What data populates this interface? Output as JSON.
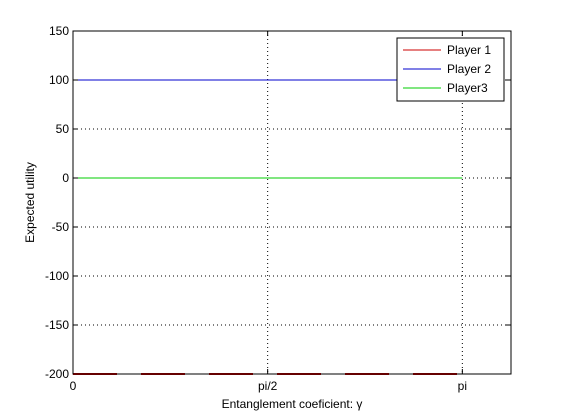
{
  "chart_data": {
    "type": "line",
    "xlabel": "Entanglement coeficient: γ",
    "ylabel": "Expected utility",
    "xlim": [
      0,
      3.5343
    ],
    "ylim": [
      -200,
      150
    ],
    "xticks": [
      {
        "value": 0,
        "label": "0"
      },
      {
        "value": 1.5708,
        "label": "pi/2"
      },
      {
        "value": 3.1416,
        "label": "pi"
      }
    ],
    "yticks": [
      -200,
      -150,
      -100,
      -50,
      0,
      50,
      100,
      150
    ],
    "grid": true,
    "legend_position": "top-right",
    "series": [
      {
        "name": "Player 1",
        "color": "#cc0000",
        "style": "dashed",
        "x": [
          0,
          3.1416
        ],
        "y": [
          -200,
          -200
        ]
      },
      {
        "name": "Player 2",
        "color": "#0000cc",
        "style": "solid",
        "x": [
          0,
          3.1416
        ],
        "y": [
          100,
          100
        ]
      },
      {
        "name": "Player3",
        "color": "#00cc00",
        "style": "solid",
        "x": [
          0,
          3.1416
        ],
        "y": [
          0,
          0
        ]
      }
    ]
  }
}
